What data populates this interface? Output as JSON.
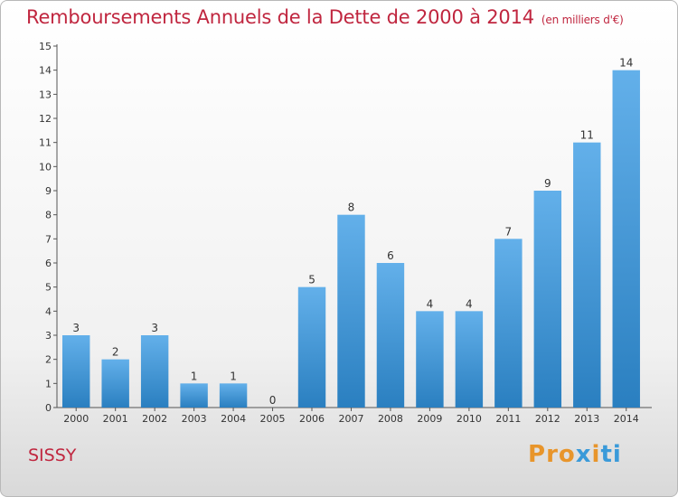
{
  "header": {
    "title": "Remboursements Annuels de la Dette de 2000 à 2014",
    "subtitle": "(en milliers d'€)"
  },
  "footer": {
    "place": "SISSY",
    "brand": "Proxiti",
    "brand_colors": [
      "#e8952b",
      "#e8952b",
      "#e8952b",
      "#3a9ad9",
      "#e8952b",
      "#3a9ad9",
      "#3a9ad9"
    ]
  },
  "colors": {
    "title": "#c0263f",
    "bar_light": "#63b0ea",
    "bar_dark": "#2a7fc0",
    "axis": "#555555",
    "grid": "#cfcfcf"
  },
  "chart_data": {
    "type": "bar",
    "categories": [
      "2000",
      "2001",
      "2002",
      "2003",
      "2004",
      "2005",
      "2006",
      "2007",
      "2008",
      "2009",
      "2010",
      "2011",
      "2012",
      "2013",
      "2014"
    ],
    "values": [
      3,
      2,
      3,
      1,
      1,
      0,
      5,
      8,
      6,
      4,
      4,
      7,
      9,
      11,
      14
    ],
    "title": "Remboursements Annuels de la Dette de 2000 à 2014",
    "subtitle": "(en milliers d'€)",
    "xlabel": "",
    "ylabel": "",
    "ylim": [
      0,
      15
    ],
    "yticks": [
      0,
      1,
      2,
      3,
      4,
      5,
      6,
      7,
      8,
      9,
      10,
      11,
      12,
      13,
      14,
      15
    ],
    "grid": false,
    "data_labels": true
  }
}
